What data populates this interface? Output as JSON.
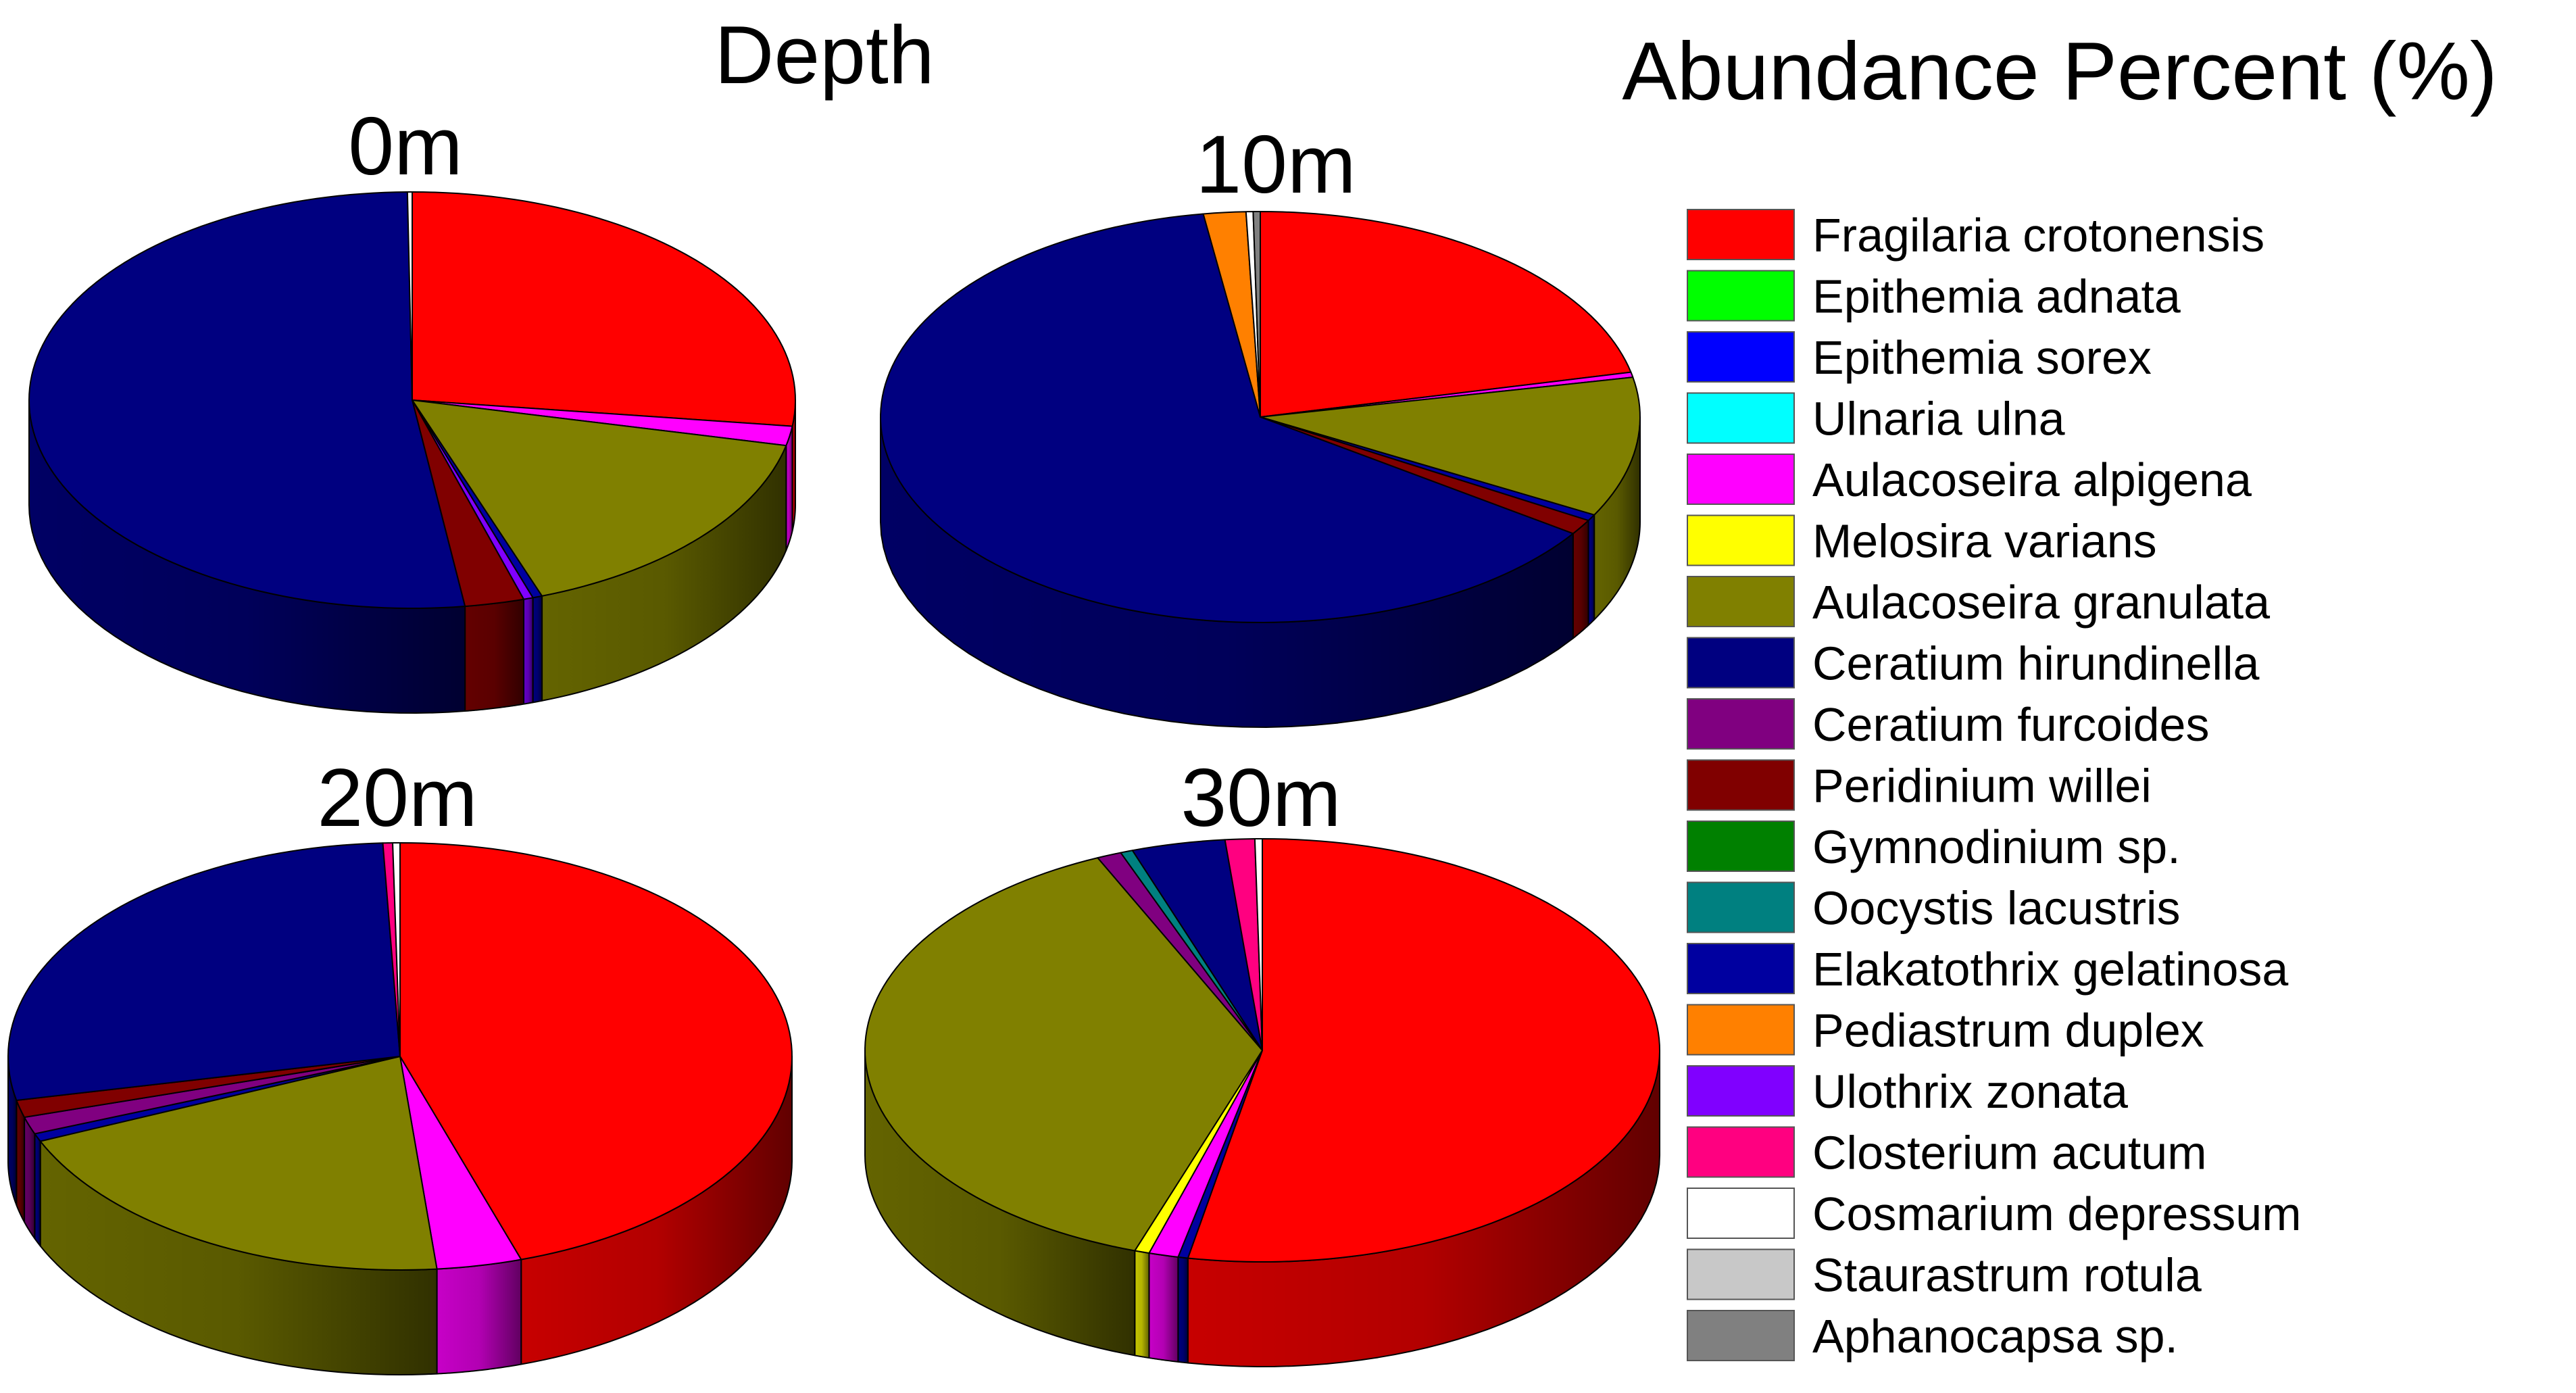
{
  "chart_data": {
    "type": "pie",
    "title": "Depth",
    "legend_title": "Abundance Percent (%)",
    "legend_position": "right",
    "species": [
      {
        "name": "Fragilaria crotonensis",
        "color": "#FF0000"
      },
      {
        "name": "Epithemia adnata",
        "color": "#00FF00"
      },
      {
        "name": "Epithemia sorex",
        "color": "#0000FF"
      },
      {
        "name": "Ulnaria ulna",
        "color": "#00FFFF"
      },
      {
        "name": "Aulacoseira alpigena",
        "color": "#FF00FF"
      },
      {
        "name": "Melosira varians",
        "color": "#FFFF00"
      },
      {
        "name": "Aulacoseira granulata",
        "color": "#808000"
      },
      {
        "name": "Ceratium hirundinella",
        "color": "#000080"
      },
      {
        "name": "Ceratium furcoides",
        "color": "#800080"
      },
      {
        "name": "Peridinium willei",
        "color": "#800000"
      },
      {
        "name": "Gymnodinium sp.",
        "color": "#008000"
      },
      {
        "name": "Oocystis lacustris",
        "color": "#008080"
      },
      {
        "name": "Elakatothrix gelatinosa",
        "color": "#0000A0"
      },
      {
        "name": "Pediastrum duplex",
        "color": "#FF8000"
      },
      {
        "name": "Ulothrix zonata",
        "color": "#8000FF"
      },
      {
        "name": "Closterium acutum",
        "color": "#FF0080"
      },
      {
        "name": "Cosmarium depressum",
        "color": "#FFFFFF"
      },
      {
        "name": "Staurastrum rotula",
        "color": "#C8C8C8"
      },
      {
        "name": "Aphanocapsa sp.",
        "color": "#808080"
      }
    ],
    "charts": [
      {
        "label": "0m",
        "slices": [
          {
            "species": "Fragilaria crotonensis",
            "value": 27.0
          },
          {
            "species": "Aulacoseira alpigena",
            "value": 1.5
          },
          {
            "species": "Aulacoseira granulata",
            "value": 16.0
          },
          {
            "species": "Elakatothrix gelatinosa",
            "value": 0.4
          },
          {
            "species": "Ulothrix zonata",
            "value": 0.4
          },
          {
            "species": "Peridinium willei",
            "value": 2.5
          },
          {
            "species": "Ceratium hirundinella",
            "value": 52.0
          },
          {
            "species": "Cosmarium depressum",
            "value": 0.2
          }
        ]
      },
      {
        "label": "10m",
        "slices": [
          {
            "species": "Fragilaria crotonensis",
            "value": 21.5
          },
          {
            "species": "Aulacoseira alpigena",
            "value": 0.4
          },
          {
            "species": "Aulacoseira granulata",
            "value": 11.0
          },
          {
            "species": "Elakatothrix gelatinosa",
            "value": 0.5
          },
          {
            "species": "Peridinium willei",
            "value": 1.2
          },
          {
            "species": "Ceratium hirundinella",
            "value": 63.0
          },
          {
            "species": "Pediastrum duplex",
            "value": 1.8
          },
          {
            "species": "Cosmarium depressum",
            "value": 0.3
          },
          {
            "species": "Aphanocapsa sp.",
            "value": 0.3
          }
        ]
      },
      {
        "label": "20m",
        "slices": [
          {
            "species": "Fragilaria crotonensis",
            "value": 45.0
          },
          {
            "species": "Aulacoseira alpigena",
            "value": 3.5
          },
          {
            "species": "Aulacoseira granulata",
            "value": 20.0
          },
          {
            "species": "Elakatothrix gelatinosa",
            "value": 0.6
          },
          {
            "species": "Ceratium furcoides",
            "value": 1.3
          },
          {
            "species": "Peridinium willei",
            "value": 1.3
          },
          {
            "species": "Ceratium hirundinella",
            "value": 27.6
          },
          {
            "species": "Closterium acutum",
            "value": 0.4
          },
          {
            "species": "Cosmarium depressum",
            "value": 0.3
          }
        ]
      },
      {
        "label": "30m",
        "slices": [
          {
            "species": "Fragilaria crotonensis",
            "value": 53.0
          },
          {
            "species": "Elakatothrix gelatinosa",
            "value": 0.4
          },
          {
            "species": "Aulacoseira alpigena",
            "value": 1.2
          },
          {
            "species": "Melosira varians",
            "value": 0.6
          },
          {
            "species": "Aulacoseira granulata",
            "value": 38.0
          },
          {
            "species": "Ceratium furcoides",
            "value": 1.0
          },
          {
            "species": "Oocystis lacustris",
            "value": 0.5
          },
          {
            "species": "Ceratium hirundinella",
            "value": 3.8
          },
          {
            "species": "Closterium acutum",
            "value": 1.2
          },
          {
            "species": "Cosmarium depressum",
            "value": 0.3
          }
        ]
      }
    ]
  }
}
